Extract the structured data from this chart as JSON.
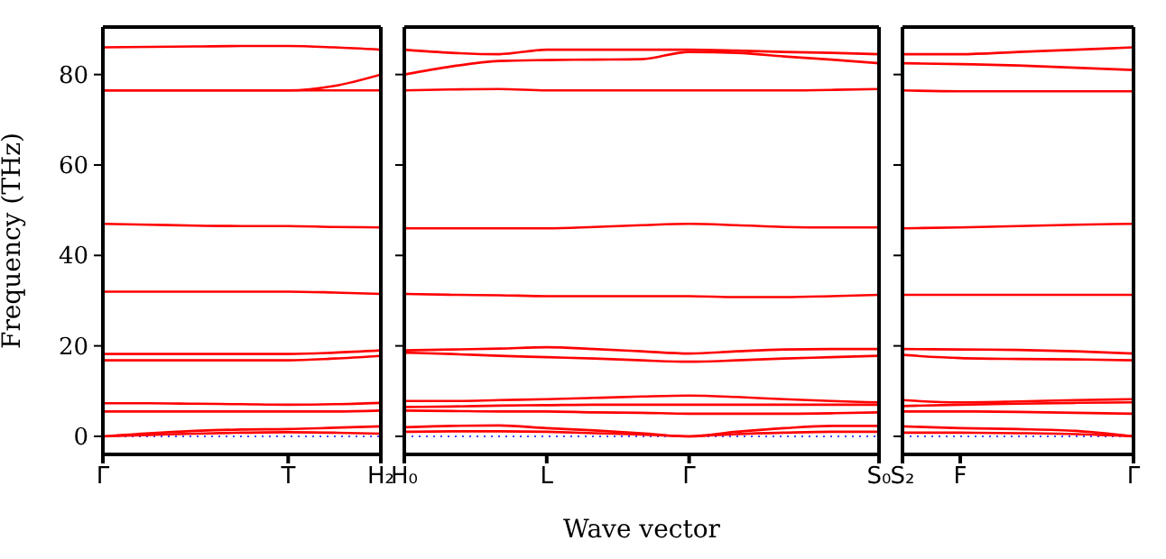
{
  "chart_data": [
    {
      "type": "line",
      "ylabel": "Frequency (THz)",
      "categories": [
        "Γ",
        null,
        null,
        null,
        "T",
        null,
        "H₂"
      ],
      "ylim": [
        -4,
        90.5
      ],
      "yticks": [
        0,
        20,
        40,
        60,
        80
      ],
      "grid": false,
      "legend": false,
      "marker": "none",
      "line_style": "solid",
      "ref_lines": [
        {
          "axis": "y",
          "value": 0,
          "color": "#4444ff",
          "line_style": "dotted"
        }
      ],
      "series": [
        {
          "color": "#ff0000",
          "values": [
            86,
            86.1,
            86.2,
            86.3,
            86.3,
            86,
            85.5
          ]
        },
        {
          "color": "#ff0000",
          "values": [
            76.5,
            76.5,
            76.5,
            76.5,
            76.5,
            77.5,
            80
          ]
        },
        {
          "color": "#ff0000",
          "values": [
            76.5,
            76.5,
            76.5,
            76.5,
            76.5,
            76.5,
            76.5
          ]
        },
        {
          "color": "#ff0000",
          "values": [
            47,
            46.8,
            46.6,
            46.5,
            46.5,
            46.3,
            46.2
          ]
        },
        {
          "color": "#ff0000",
          "values": [
            32,
            32,
            32,
            32,
            32,
            31.8,
            31.5
          ]
        },
        {
          "color": "#ff0000",
          "values": [
            18.2,
            18.2,
            18.2,
            18.2,
            18.2,
            18.5,
            19
          ]
        },
        {
          "color": "#ff0000",
          "values": [
            16.8,
            16.8,
            16.8,
            16.8,
            16.8,
            17.2,
            17.8
          ]
        },
        {
          "color": "#ff0000",
          "values": [
            7.3,
            7.3,
            7.2,
            7.1,
            7,
            7.1,
            7.4
          ]
        },
        {
          "color": "#ff0000",
          "values": [
            5.5,
            5.5,
            5.5,
            5.5,
            5.5,
            5.5,
            5.7
          ]
        },
        {
          "color": "#ff0000",
          "values": [
            0,
            0.7,
            1.2,
            1.5,
            1.6,
            1.9,
            2.2
          ]
        },
        {
          "color": "#ff0000",
          "values": [
            0,
            0.3,
            0.6,
            0.8,
            0.9,
            0.8,
            0.6
          ]
        }
      ]
    },
    {
      "type": "line",
      "xlabel": "Wave vector",
      "tick_labels": "x",
      "categories": [
        "H₀",
        null,
        null,
        "L",
        null,
        null,
        "Γ",
        null,
        null,
        null,
        "S₀"
      ],
      "ylim": [
        -4,
        90.5
      ],
      "yticks": [
        0,
        20,
        40,
        60,
        80
      ],
      "grid": false,
      "legend": false,
      "marker": "none",
      "line_style": "solid",
      "ref_lines": [
        {
          "axis": "y",
          "value": 0,
          "color": "#4444ff",
          "line_style": "dotted"
        }
      ],
      "series": [
        {
          "color": "#ff0000",
          "values": [
            85.5,
            84.8,
            84.5,
            85.5,
            85.5,
            85.5,
            85.5,
            85.3,
            85,
            84.8,
            84.5
          ]
        },
        {
          "color": "#ff0000",
          "values": [
            80,
            81.8,
            83,
            83.2,
            83.3,
            83.4,
            85,
            84.8,
            84,
            83.3,
            82.5
          ]
        },
        {
          "color": "#ff0000",
          "values": [
            76.5,
            76.7,
            76.8,
            76.5,
            76.5,
            76.5,
            76.5,
            76.5,
            76.5,
            76.6,
            76.8
          ]
        },
        {
          "color": "#ff0000",
          "values": [
            46,
            46,
            46,
            46,
            46.3,
            46.7,
            47,
            46.7,
            46.3,
            46.2,
            46.2
          ]
        },
        {
          "color": "#ff0000",
          "values": [
            31.5,
            31.3,
            31.2,
            31,
            31,
            31,
            31,
            30.8,
            30.8,
            31,
            31.3
          ]
        },
        {
          "color": "#ff0000",
          "values": [
            19,
            19.2,
            19.4,
            19.7,
            19.3,
            18.8,
            18.3,
            18.8,
            19.2,
            19.3,
            19.3
          ]
        },
        {
          "color": "#ff0000",
          "values": [
            18.5,
            18.2,
            17.8,
            17.5,
            17.2,
            16.8,
            16.5,
            16.8,
            17.2,
            17.5,
            17.8
          ]
        },
        {
          "color": "#ff0000",
          "values": [
            7.8,
            7.8,
            8,
            8.2,
            8.5,
            8.8,
            9,
            8.7,
            8.2,
            7.8,
            7.5
          ]
        },
        {
          "color": "#ff0000",
          "values": [
            6.5,
            6.6,
            6.8,
            6.9,
            7,
            7,
            7,
            7,
            7,
            7,
            7
          ]
        },
        {
          "color": "#ff0000",
          "values": [
            5.7,
            5.6,
            5.5,
            5.5,
            5.3,
            5.2,
            5,
            5,
            5,
            5.1,
            5.3
          ]
        },
        {
          "color": "#ff0000",
          "values": [
            2,
            2.3,
            2.4,
            1.8,
            1.3,
            0.7,
            0,
            1,
            1.8,
            2.3,
            2.3
          ]
        },
        {
          "color": "#ff0000",
          "values": [
            1,
            1.1,
            1.1,
            1,
            0.7,
            0.4,
            0,
            0.5,
            0.8,
            1,
            1
          ]
        }
      ]
    },
    {
      "type": "line",
      "tick_labels": "x",
      "categories": [
        "S₂",
        "F",
        null,
        null,
        "Γ"
      ],
      "ylim": [
        -4,
        90.5
      ],
      "yticks": [
        0,
        20,
        40,
        60,
        80
      ],
      "grid": false,
      "legend": false,
      "marker": "none",
      "line_style": "solid",
      "ref_lines": [
        {
          "axis": "y",
          "value": 0,
          "color": "#4444ff",
          "line_style": "dotted"
        }
      ],
      "series": [
        {
          "color": "#ff0000",
          "values": [
            84.5,
            84.5,
            85,
            85.5,
            86
          ]
        },
        {
          "color": "#ff0000",
          "values": [
            82.5,
            82.3,
            82,
            81.5,
            81
          ]
        },
        {
          "color": "#ff0000",
          "values": [
            76.5,
            76.3,
            76.3,
            76.3,
            76.3
          ]
        },
        {
          "color": "#ff0000",
          "values": [
            46,
            46.2,
            46.5,
            46.8,
            47
          ]
        },
        {
          "color": "#ff0000",
          "values": [
            31.3,
            31.3,
            31.3,
            31.3,
            31.3
          ]
        },
        {
          "color": "#ff0000",
          "values": [
            19.3,
            19.2,
            19.1,
            18.8,
            18.3
          ]
        },
        {
          "color": "#ff0000",
          "values": [
            18,
            17.3,
            17.1,
            17,
            16.8
          ]
        },
        {
          "color": "#ff0000",
          "values": [
            8,
            7.5,
            7.7,
            8,
            8.2
          ]
        },
        {
          "color": "#ff0000",
          "values": [
            6.7,
            7,
            7.2,
            7.4,
            7.5
          ]
        },
        {
          "color": "#ff0000",
          "values": [
            5.5,
            5.5,
            5.4,
            5.2,
            5
          ]
        },
        {
          "color": "#ff0000",
          "values": [
            2.2,
            1.8,
            1.6,
            1.2,
            0
          ]
        },
        {
          "color": "#ff0000",
          "values": [
            0.8,
            0.8,
            0.7,
            0.5,
            0
          ]
        }
      ]
    }
  ]
}
